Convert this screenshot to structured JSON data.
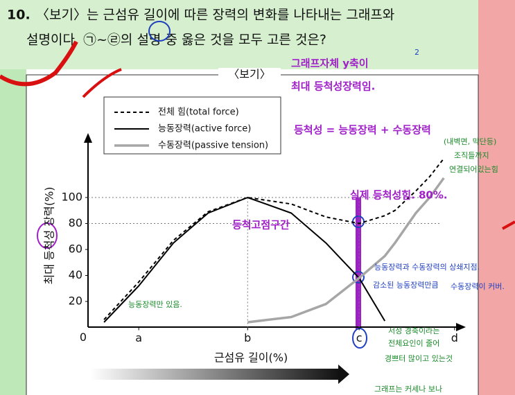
{
  "question": {
    "number": "10.",
    "line1": "〈보기〉는 근섬유 길이에 따른 장력의 변화를 나타내는 그래프와",
    "line2": "설명이다. ㉠~㉣의 설명 중 옳은 것을 모두 고른 것은?"
  },
  "box_title": "〈보기〉",
  "chart_data": {
    "type": "line",
    "x_label": "근섬유 길이(%)",
    "y_label": "최대 등척성 장력(%)",
    "xlim": [
      0,
      100
    ],
    "ylim": [
      0,
      145
    ],
    "xticks": [
      {
        "value": 13.6,
        "label": "a"
      },
      {
        "value": 42.8,
        "label": "b"
      },
      {
        "value": 72.7,
        "label": "c"
      },
      {
        "value": 98.3,
        "label": "d"
      }
    ],
    "yticks": [
      0,
      20,
      40,
      60,
      80,
      100
    ],
    "ref_lines_y": [
      100,
      80
    ],
    "ref_lines_x": [
      42.8,
      72.7
    ],
    "x": [
      4.3,
      13.6,
      22.9,
      32.2,
      42.8,
      54.5,
      63.8,
      72.7,
      79.6,
      82.3,
      87.9,
      91.6,
      95.4
    ],
    "series": [
      {
        "name": "전체 힘(total force)",
        "color": "#000000",
        "style": "dashed",
        "values": [
          6,
          35,
          67,
          89,
          100,
          95,
          85,
          80,
          86,
          90,
          105,
          116,
          130
        ]
      },
      {
        "name": "능동장력(active force)",
        "color": "#000000",
        "style": "solid",
        "values": [
          4,
          32,
          65,
          88,
          100,
          88,
          65,
          38,
          5,
          null,
          null,
          null,
          null
        ]
      },
      {
        "name": "수동장력(passive tension)",
        "color": "#a6a6a6",
        "style": "thick",
        "values": [
          null,
          null,
          null,
          null,
          4,
          8,
          18,
          38,
          55,
          65,
          88,
          100,
          115
        ]
      }
    ]
  },
  "annotations": [
    "2",
    "그래프자체 y축이",
    "최대 등척성장력임.",
    "등척성 = 능동장력 + 수동장력",
    "(내벽면, 막단등)",
    "조직들까지",
    "연결되어있는힘",
    "실제 등척성힘. 80%.",
    "등척고점구간",
    "능동장력과 수동장력의 상쇄지점.",
    "감소된 능동장력만큼",
    "수동장력이 커버.",
    "능동장력만 있음.",
    "서성 경축이라는",
    "전체요인이 줄어",
    "경쁘터 많이고 있는것",
    "그래프는 커세나 보나"
  ]
}
